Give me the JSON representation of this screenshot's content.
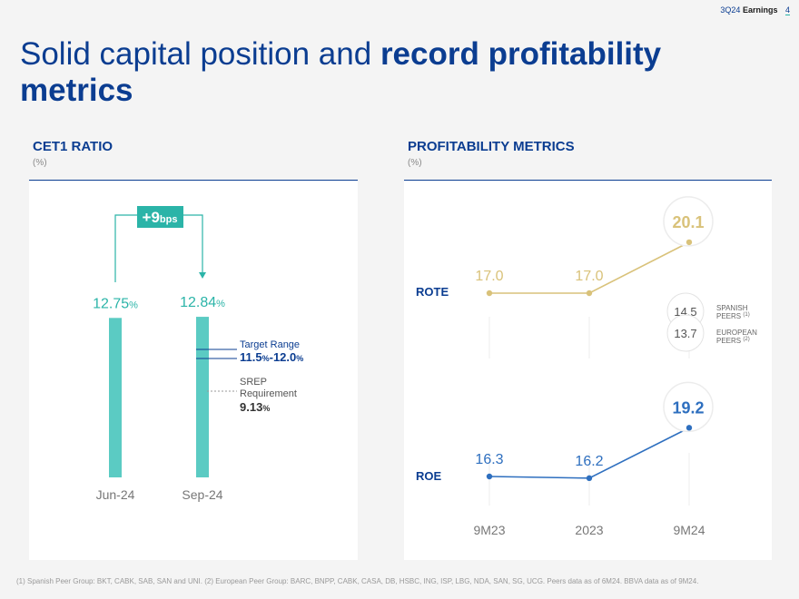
{
  "header": {
    "label": "3Q24",
    "title": "Earnings",
    "page": "4"
  },
  "title": {
    "regular": "Solid capital position and ",
    "bold": "record profitability metrics"
  },
  "cet1": {
    "heading": "CET1 RATIO",
    "unit": "(%)",
    "change": {
      "value": "+9",
      "unit": "bps"
    },
    "target_range": {
      "label": "Target Range",
      "value_a": "11.5",
      "value_b": "12.0",
      "low": 11.5,
      "high": 12.0
    },
    "srep": {
      "label_1": "SREP",
      "label_2": "Requirement",
      "value": "9.13",
      "numeric": 9.13
    },
    "percent_sign": "%"
  },
  "profitability": {
    "heading": "PROFITABILITY METRICS",
    "unit": "(%)",
    "peers": [
      {
        "value": "14.5",
        "label_1": "SPANISH",
        "label_2": "PEERS",
        "note": "(1)"
      },
      {
        "value": "13.7",
        "label_1": "EUROPEAN",
        "label_2": "PEERS",
        "note": "(2)"
      }
    ]
  },
  "colors": {
    "navy": "#0b3d91",
    "teal": "#2bb4a8",
    "bar": "#5bcbc3",
    "rote": "#d9c27a",
    "roe": "#2e6fbf"
  },
  "chart_data": [
    {
      "type": "bar",
      "title": "CET1 RATIO",
      "categories": [
        "Jun-24",
        "Sep-24"
      ],
      "values": [
        12.75,
        12.84
      ],
      "labels": [
        "12.75",
        "12.84"
      ],
      "ylabel": "(%)"
    },
    {
      "type": "line",
      "title": "PROFITABILITY METRICS",
      "categories": [
        "9M23",
        "2023",
        "9M24"
      ],
      "series": [
        {
          "name": "ROTE",
          "values": [
            17.0,
            17.0,
            20.1
          ],
          "labels": [
            "17.0",
            "17.0",
            "20.1"
          ]
        },
        {
          "name": "ROE",
          "values": [
            16.3,
            16.2,
            19.2
          ],
          "labels": [
            "16.3",
            "16.2",
            "19.2"
          ]
        }
      ]
    }
  ],
  "footnote": "(1) Spanish Peer Group: BKT, CABK, SAB, SAN and UNI. (2) European Peer Group: BARC, BNPP, CABK, CASA, DB, HSBC, ING, ISP, LBG, NDA, SAN, SG, UCG. Peers data as of 6M24. BBVA data as of 9M24."
}
